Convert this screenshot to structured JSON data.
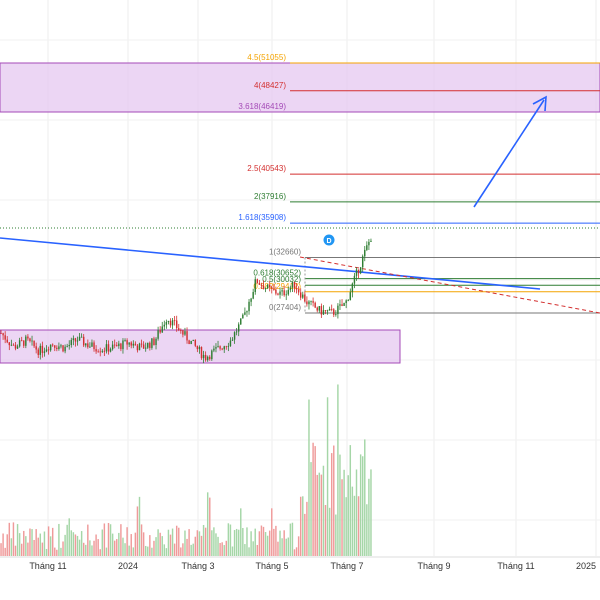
{
  "chart_data": {
    "type": "candlestick",
    "title": "",
    "xlabel": "",
    "ylabel": "",
    "x_ticks": [
      "Tháng 11",
      "2024",
      "Tháng 3",
      "Tháng 5",
      "Tháng 7",
      "Tháng 9",
      "Tháng 11",
      "2025"
    ],
    "grid": true,
    "colors": {
      "up": "#2e7d32",
      "down": "#d32f2f",
      "zone": "#e6c8f0",
      "zone_border": "#a44ab7",
      "trend": "#2962ff"
    },
    "fib_levels": [
      {
        "label": "4.5(51055)",
        "ratio": 4.5,
        "value": 51055,
        "color": "#f4a300"
      },
      {
        "label": "4(48427)",
        "ratio": 4,
        "value": 48427,
        "color": "#d32f2f"
      },
      {
        "label": "3.618(46419)",
        "ratio": 3.618,
        "value": 46419,
        "color": "#a44ab7"
      },
      {
        "label": "2.5(40543)",
        "ratio": 2.5,
        "value": 40543,
        "color": "#d32f2f"
      },
      {
        "label": "2(37916)",
        "ratio": 2,
        "value": 37916,
        "color": "#2e7d32"
      },
      {
        "label": "1.618(35908)",
        "ratio": 1.618,
        "value": 35908,
        "color": "#2962ff"
      },
      {
        "label": "1(32660)",
        "ratio": 1,
        "value": 32660,
        "color": "#777777"
      },
      {
        "label": "0.618(30652)",
        "ratio": 0.618,
        "value": 30652,
        "color": "#2e7d32"
      },
      {
        "label": "0.5(30032)",
        "ratio": 0.5,
        "value": 30032,
        "color": "#2e7d32"
      },
      {
        "label": "0.382(29412)",
        "ratio": 0.382,
        "value": 29412,
        "color": "#f4a300"
      },
      {
        "label": "0(27404)",
        "ratio": 0,
        "value": 27404,
        "color": "#777777"
      }
    ],
    "zones": [
      {
        "name": "upper-target-zone",
        "low": 46419,
        "high": 51055
      },
      {
        "name": "base-accumulation-zone",
        "low": 22800,
        "high": 25000
      }
    ],
    "event_marker": "D",
    "candles_description": "sideways base roughly 23000-25500 from Oct 2023 to Apr 2024, spike to ~27800 in Apr, rally to ~32600 in late May, pullback to ~27400 in June, breakout to ~35000 in early July",
    "series": [
      {
        "name": "",
        "approx_closes": [
          25500,
          24200,
          24800,
          23800,
          24500,
          24100,
          24900,
          24300,
          24000,
          24200,
          24600,
          24100,
          24700,
          27000,
          25800,
          24500,
          23200,
          24000,
          24800,
          26900,
          30500,
          29600,
          29200,
          30100,
          28400,
          27600,
          27400,
          28300,
          31500,
          34600
        ]
      }
    ],
    "volume_note": "volume bars rise sharply from late May 2024"
  }
}
